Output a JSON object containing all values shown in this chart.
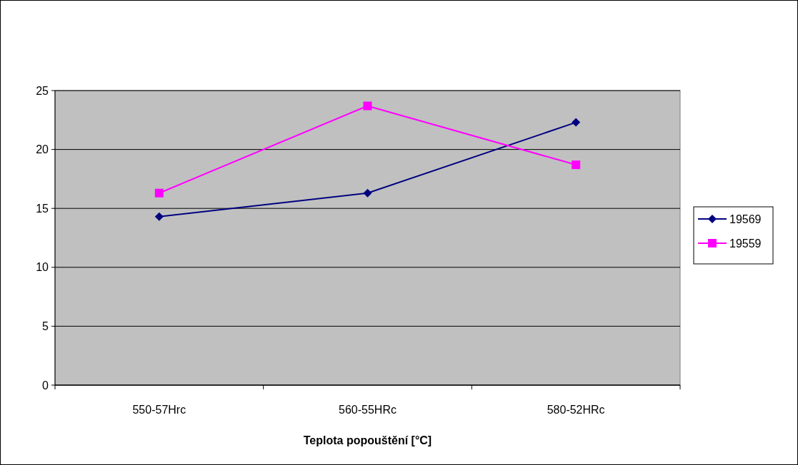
{
  "chart_data": {
    "type": "line",
    "xlabel": "Teplota popouštění [°C]",
    "categories": [
      "550-57Hrc",
      "560-55HRc",
      "580-52HRc"
    ],
    "series": [
      {
        "name": "19569",
        "color": "#000080",
        "marker": "diamond",
        "values": [
          14.3,
          16.3,
          22.3
        ]
      },
      {
        "name": "19559",
        "color": "#ff00ff",
        "marker": "square",
        "values": [
          16.3,
          23.7,
          18.7
        ]
      }
    ],
    "ylim": [
      0,
      25
    ],
    "yticks": [
      0,
      5,
      10,
      15,
      20,
      25
    ],
    "grid": "y",
    "legend": "right"
  }
}
